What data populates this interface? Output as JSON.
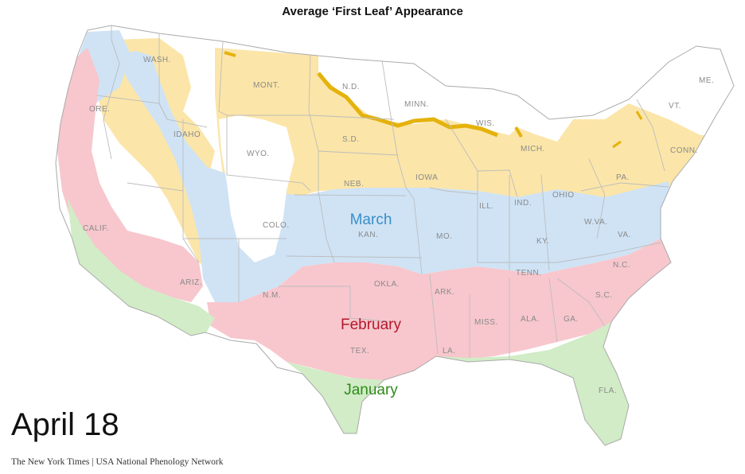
{
  "title": "Average ‘First Leaf’ Appearance",
  "date_label": "April 18",
  "credit": "The New York Times | USA National Phenology Network",
  "zones": [
    {
      "key": "march",
      "label": "March",
      "color": "#3a8fc7",
      "fill": "#cfe3f5"
    },
    {
      "key": "february",
      "label": "February",
      "color": "#b3182b",
      "fill": "#f7c7cd"
    },
    {
      "key": "january",
      "label": "January",
      "color": "#2e8b1a",
      "fill": "#d1ecc6"
    }
  ],
  "other_fills": {
    "april": "#fbe5a8",
    "front": "#e4b20b",
    "not_yet": "#ffffff",
    "border": "#bdbdbd"
  },
  "state_labels": {
    "wash": "WASH.",
    "ore": "ORE.",
    "idaho": "IDAHO",
    "mont": "MONT.",
    "wyo": "WYO.",
    "nd": "N.D.",
    "sd": "S.D.",
    "minn": "MINN.",
    "wis": "WIS.",
    "mich": "MICH.",
    "me": "ME.",
    "vt": "VT.",
    "conn": "CONN.",
    "pa": "PA.",
    "ohio": "OHIO",
    "iowa": "IOWA",
    "neb": "NEB.",
    "colo": "COLO.",
    "kan": "KAN.",
    "mo": "MO.",
    "ill": "ILL.",
    "ind": "IND.",
    "wva": "W.VA.",
    "va": "VA.",
    "ky": "KY.",
    "calif": "CALIF.",
    "ariz": "ARIZ.",
    "nm": "N.M.",
    "okla": "OKLA.",
    "ark": "ARK.",
    "tenn": "TENN.",
    "nc": "N.C.",
    "sc": "S.C.",
    "ga": "GA.",
    "ala": "ALA.",
    "miss": "MISS.",
    "tex": "TEX.",
    "la": "LA.",
    "fla": "FLA."
  }
}
